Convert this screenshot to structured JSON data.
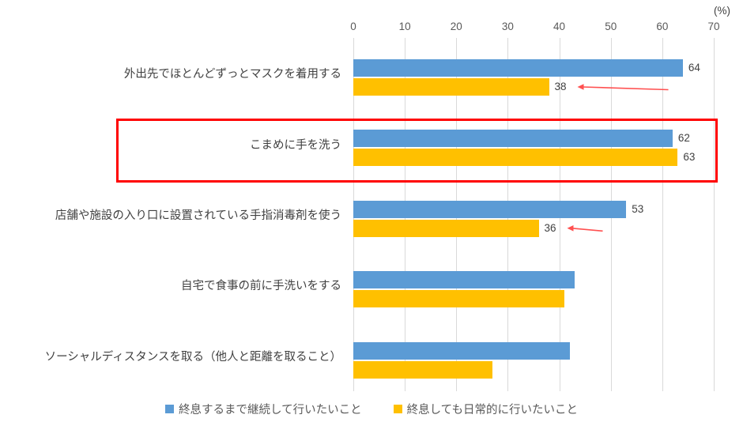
{
  "chart_data": {
    "type": "bar",
    "orientation": "horizontal",
    "title": "",
    "unit_label": "(%)",
    "categories": [
      "外出先でほとんどずっとマスクを着用する",
      "こまめに手を洗う",
      "店舗や施設の入り口に設置されている手指消毒剤を使う",
      "自宅で食事の前に手洗いをする",
      "ソーシャルディスタンスを取る（他人と距離を取ること）"
    ],
    "series": [
      {
        "name": "終息するまで継続して行いたいこと",
        "color": "#5B9BD5",
        "values": [
          64,
          62,
          53,
          43,
          42
        ]
      },
      {
        "name": "終息しても日常的に行いたいこと",
        "color": "#FFC000",
        "values": [
          38,
          63,
          36,
          41,
          27
        ]
      }
    ],
    "data_labels": [
      [
        64,
        62,
        53,
        null,
        null
      ],
      [
        38,
        63,
        36,
        null,
        null
      ]
    ],
    "xlim": [
      0,
      70
    ],
    "x_ticks": [
      0,
      10,
      20,
      30,
      40,
      50,
      60,
      70
    ],
    "grid": true,
    "legend_position": "bottom",
    "annotations": {
      "highlight_box_row": 1,
      "highlight_color": "#FF0000",
      "arrow_color": "#FF5050",
      "arrows": [
        {
          "row": 0,
          "series": 1,
          "length": 115
        },
        {
          "row": 2,
          "series": 1,
          "length": 45
        }
      ]
    }
  }
}
